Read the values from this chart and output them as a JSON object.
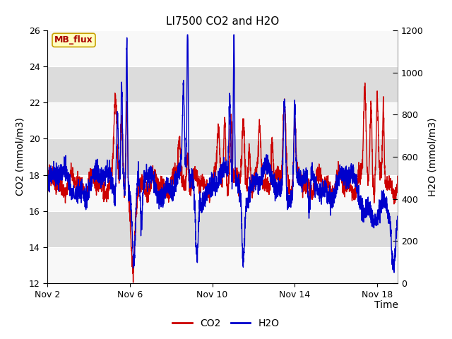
{
  "title": "LI7500 CO2 and H2O",
  "xlabel": "Time",
  "ylabel_left": "CO2 (mmol/m3)",
  "ylabel_right": "H2O (mmol/m3)",
  "ylim_left": [
    12,
    26
  ],
  "ylim_right": [
    0,
    1200
  ],
  "yticks_left": [
    12,
    14,
    16,
    18,
    20,
    22,
    24,
    26
  ],
  "yticks_right": [
    0,
    200,
    400,
    600,
    800,
    1000,
    1200
  ],
  "xtick_labels": [
    "Nov 2",
    "Nov 6",
    "Nov 10",
    "Nov 14",
    "Nov 18"
  ],
  "xtick_positions": [
    0,
    4,
    8,
    12,
    16
  ],
  "co2_color": "#CC0000",
  "h2o_color": "#0000CC",
  "figure_bg": "#FFFFFF",
  "plot_bg": "#F0F0F0",
  "gray_band_color": "#DCDCDC",
  "white_band_color": "#F8F8F8",
  "legend_label_co2": "CO2",
  "legend_label_h2o": "H2O",
  "annotation_text": "MB_flux",
  "annotation_bg": "#FFFFC0",
  "annotation_border": "#C8A000",
  "title_fontsize": 11,
  "label_fontsize": 10,
  "tick_fontsize": 9,
  "xlim": [
    0,
    17
  ]
}
